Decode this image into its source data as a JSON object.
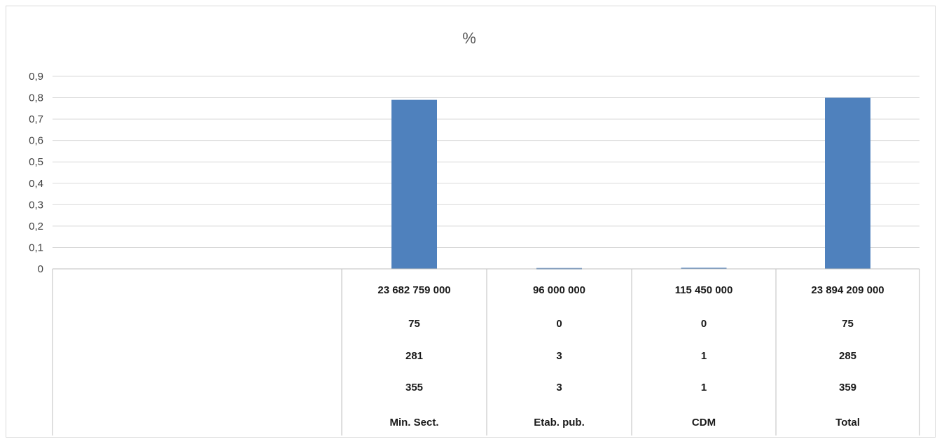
{
  "chart_data": {
    "type": "bar",
    "title": "%",
    "ylim": [
      0,
      0.9
    ],
    "y_ticks": [
      "0",
      "0,1",
      "0,2",
      "0,3",
      "0,4",
      "0,5",
      "0,6",
      "0,7",
      "0,8",
      "0,9"
    ],
    "grid": true,
    "bar_color": "#4f81bd",
    "categories": [
      "",
      "Min. Sect.",
      "Etab. pub.",
      "CDM",
      "Total"
    ],
    "values": [
      null,
      0.79,
      0.004,
      0.005,
      0.8
    ],
    "table_rows": [
      [
        "",
        "23 682 759 000",
        "96 000 000",
        "115 450 000",
        "23 894 209 000"
      ],
      [
        "",
        "75",
        "0",
        "0",
        "75"
      ],
      [
        "",
        "281",
        "3",
        "1",
        "285"
      ],
      [
        "",
        "355",
        "3",
        "1",
        "359"
      ],
      [
        "",
        "Min. Sect.",
        "Etab. pub.",
        "CDM",
        "Total"
      ]
    ]
  }
}
